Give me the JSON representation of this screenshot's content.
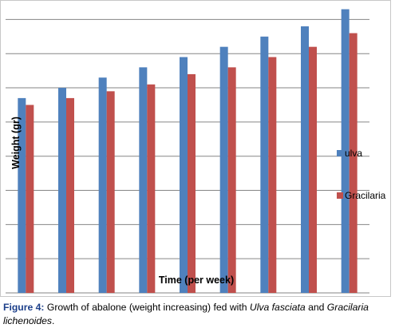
{
  "chart_data": {
    "type": "bar",
    "xlabel": "Time (per week)",
    "ylabel": "Weight (gr)",
    "categories": [
      "",
      "",
      "",
      "",
      "",
      "",
      "",
      "",
      ""
    ],
    "series": [
      {
        "name": "ulva",
        "color": "#4f81bd",
        "values": [
          5.7,
          6.0,
          6.3,
          6.6,
          6.9,
          7.2,
          7.5,
          7.8,
          8.3
        ]
      },
      {
        "name": "Gracilaria",
        "color": "#c0504d",
        "values": [
          5.5,
          5.7,
          5.9,
          6.1,
          6.4,
          6.6,
          6.9,
          7.2,
          7.6
        ]
      }
    ],
    "ylim": [
      0,
      8.5
    ],
    "gridlines": [
      0,
      1,
      2,
      3,
      4,
      5,
      6,
      7,
      8
    ],
    "grid": true,
    "y_tick_labels_shown": false,
    "legend_position": "right"
  },
  "caption": {
    "label": "Figure 4:",
    "text_1": " Growth of abalone (weight increasing) fed with ",
    "species_1": "Ulva fasciata",
    "text_2": " and ",
    "species_2": "Gracilaria lichenoides",
    "text_3": "."
  }
}
